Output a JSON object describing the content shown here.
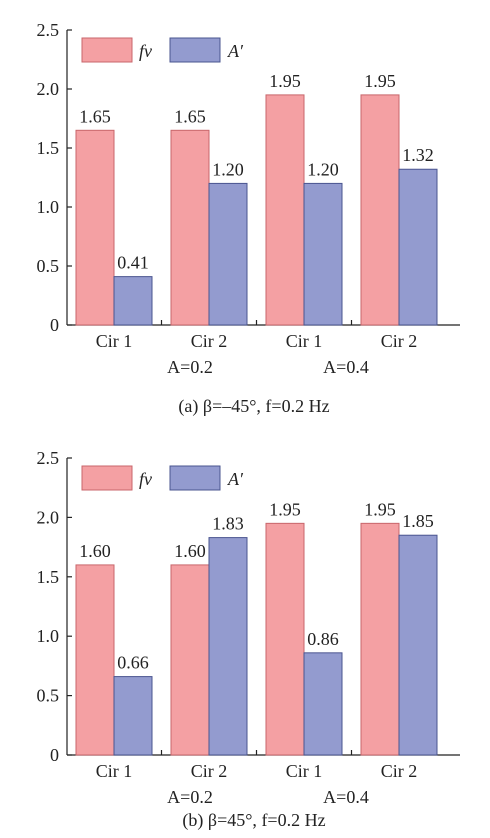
{
  "chart_data": [
    {
      "type": "bar",
      "caption": {
        "prefix": "(a)",
        "beta": "β=–45°,",
        "freq": "f=0.2 Hz"
      },
      "categories": [
        "Cir 1",
        "Cir 2",
        "Cir 1",
        "Cir 2"
      ],
      "groups": [
        "A=0.2",
        "A=0.4"
      ],
      "series": [
        {
          "name": "f_v",
          "legend": "fv",
          "values": [
            1.65,
            1.65,
            1.95,
            1.95
          ]
        },
        {
          "name": "A′",
          "legend": "A′",
          "values": [
            0.41,
            1.2,
            1.2,
            1.32
          ]
        }
      ],
      "labels": [
        [
          "1.65",
          "1.65",
          "1.95",
          "1.95"
        ],
        [
          "0.41",
          "1.20",
          "1.20",
          "1.32"
        ]
      ],
      "ylim": [
        0,
        2.5
      ],
      "yticks": [
        "0",
        "0.5",
        "1.0",
        "1.5",
        "2.0",
        "2.5"
      ],
      "legend_position": "top-left",
      "grid": false
    },
    {
      "type": "bar",
      "caption": {
        "prefix": "(b)",
        "beta": "β=45°,",
        "freq": "f=0.2 Hz"
      },
      "categories": [
        "Cir 1",
        "Cir 2",
        "Cir 1",
        "Cir 2"
      ],
      "groups": [
        "A=0.2",
        "A=0.4"
      ],
      "series": [
        {
          "name": "f_v",
          "legend": "fv",
          "values": [
            1.6,
            1.6,
            1.95,
            1.95
          ]
        },
        {
          "name": "A′",
          "legend": "A′",
          "values": [
            0.66,
            1.83,
            0.86,
            1.85
          ]
        }
      ],
      "labels": [
        [
          "1.60",
          "1.60",
          "1.95",
          "1.95"
        ],
        [
          "0.66",
          "1.83",
          "0.86",
          "1.85"
        ]
      ],
      "ylim": [
        0,
        2.5
      ],
      "yticks": [
        "0",
        "0.5",
        "1.0",
        "1.5",
        "2.0",
        "2.5"
      ],
      "legend_position": "top-left",
      "grid": false
    }
  ],
  "colors": {
    "fv_fill": "#f4a0a3",
    "fv_stroke": "#c8666b",
    "a_fill": "#939bcf",
    "a_stroke": "#4a548f"
  }
}
